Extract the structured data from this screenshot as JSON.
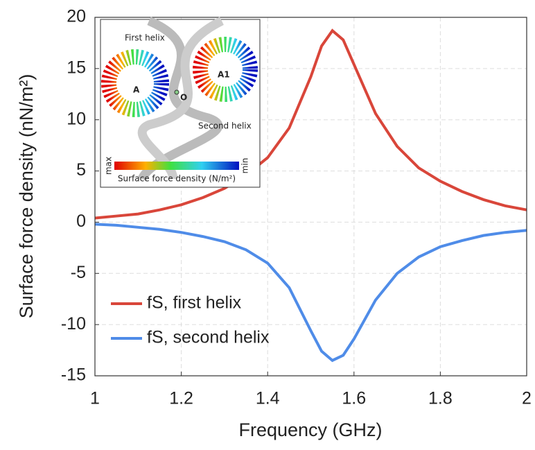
{
  "chart_data": {
    "type": "line",
    "x_label": "Frequency (GHz)",
    "y_label": "Surface force density (nN/m²)",
    "x": [
      1,
      1.05,
      1.1,
      1.15,
      1.2,
      1.25,
      1.3,
      1.35,
      1.4,
      1.45,
      1.5,
      1.525,
      1.55,
      1.575,
      1.6,
      1.65,
      1.7,
      1.75,
      1.8,
      1.85,
      1.9,
      1.95,
      2
    ],
    "series": [
      {
        "name": "fS, first helix",
        "color": "#d9463a",
        "values": [
          0.4,
          0.6,
          0.8,
          1.2,
          1.7,
          2.4,
          3.3,
          4.6,
          6.3,
          9.2,
          14.2,
          17.2,
          18.7,
          17.8,
          15.4,
          10.6,
          7.4,
          5.3,
          4.0,
          3.0,
          2.2,
          1.6,
          1.2
        ]
      },
      {
        "name": "fS, second helix",
        "color": "#4f8ce8",
        "values": [
          -0.2,
          -0.3,
          -0.5,
          -0.7,
          -1.0,
          -1.4,
          -1.9,
          -2.7,
          -4.0,
          -6.4,
          -10.6,
          -12.6,
          -13.5,
          -13.0,
          -11.4,
          -7.6,
          -5.0,
          -3.4,
          -2.4,
          -1.8,
          -1.3,
          -1.0,
          -0.8
        ]
      }
    ],
    "xlim": [
      1,
      2
    ],
    "xticks": [
      1,
      1.2,
      1.4,
      1.6,
      1.8,
      2
    ],
    "ylim": [
      -15,
      20
    ],
    "yticks": [
      -15,
      -10,
      -5,
      0,
      5,
      10,
      15,
      20
    ],
    "grid": true,
    "legend": "lower-left"
  },
  "inset": {
    "first_helix": "First helix",
    "second_helix": "Second helix",
    "point_a": "A",
    "point_a1": "A1",
    "point_o": "O",
    "max": "max",
    "min": "min",
    "colorbar_label": "Surface force density (N/m²)"
  }
}
